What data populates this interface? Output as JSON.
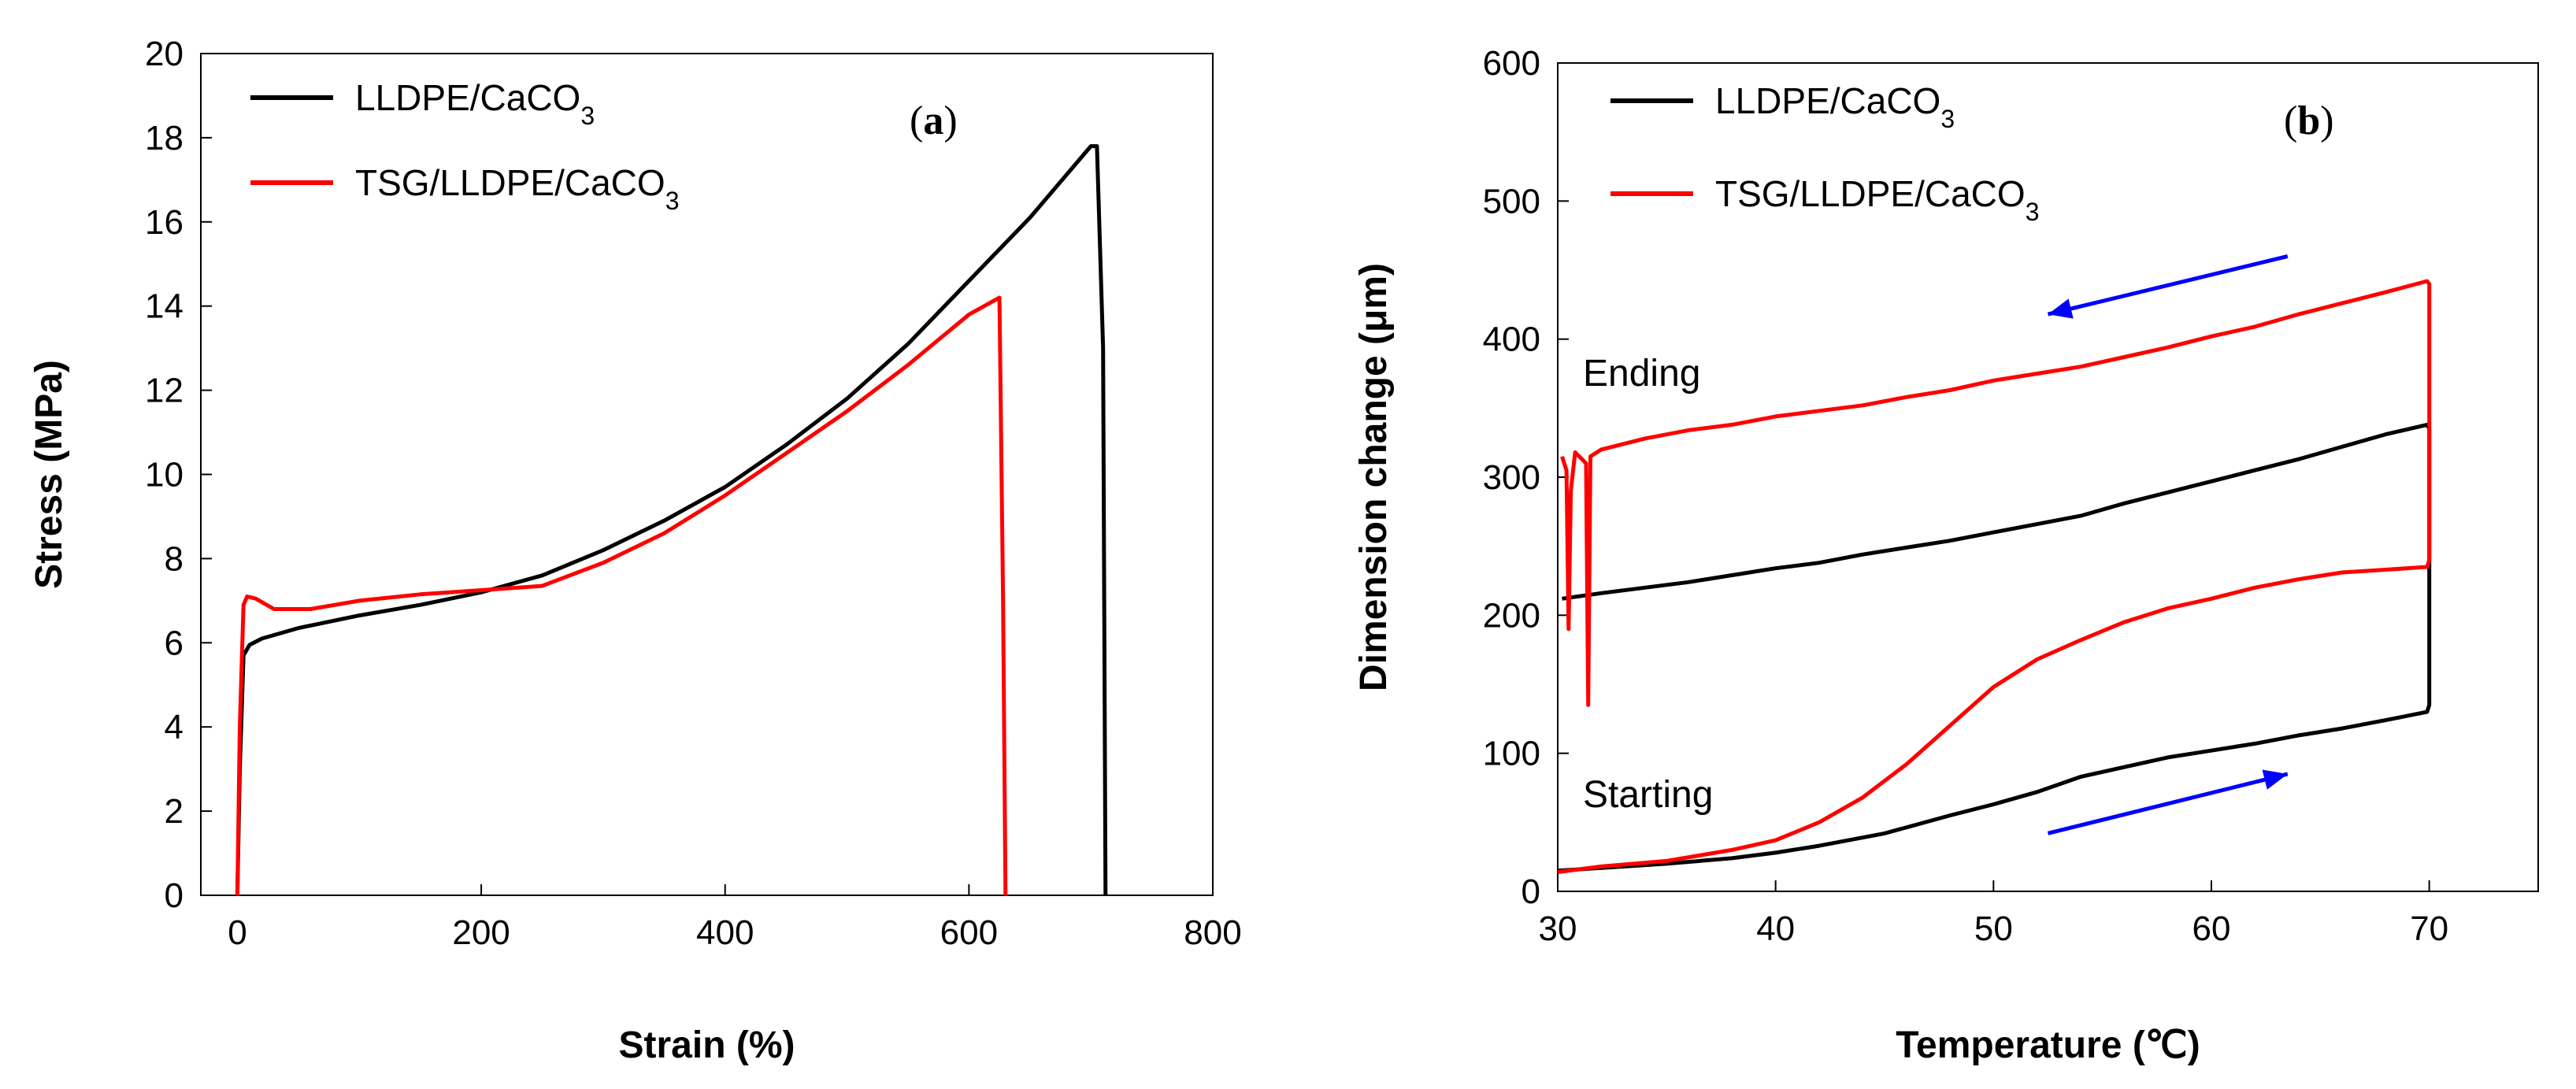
{
  "chart_data": [
    {
      "type": "line",
      "panel_label": "(a)",
      "title": "",
      "xlabel": "Strain (%)",
      "ylabel": "Stress (MPa)",
      "xlim": [
        -30,
        800
      ],
      "ylim": [
        0,
        20
      ],
      "xticks": [
        0,
        200,
        400,
        600,
        800
      ],
      "yticks": [
        0,
        2,
        4,
        6,
        8,
        10,
        12,
        14,
        16,
        18,
        20
      ],
      "legend_position": "top-left",
      "grid": false,
      "series": [
        {
          "name": "LLDPE/CaCO3",
          "color": "#000000",
          "x": [
            0,
            2,
            5,
            10,
            20,
            50,
            100,
            150,
            200,
            250,
            300,
            350,
            400,
            450,
            500,
            550,
            600,
            650,
            700,
            705,
            710,
            712
          ],
          "y": [
            0,
            3,
            5.7,
            5.95,
            6.1,
            6.35,
            6.65,
            6.9,
            7.2,
            7.6,
            8.2,
            8.9,
            9.7,
            10.7,
            11.8,
            13.1,
            14.6,
            16.1,
            17.8,
            17.8,
            13,
            0
          ]
        },
        {
          "name": "TSG/LLDPE/CaCO3",
          "color": "#ff0000",
          "x": [
            0,
            2,
            5,
            8,
            15,
            30,
            60,
            100,
            150,
            200,
            250,
            300,
            350,
            400,
            450,
            500,
            550,
            600,
            625,
            628,
            630
          ],
          "y": [
            0,
            4,
            6.9,
            7.1,
            7.05,
            6.8,
            6.8,
            7.0,
            7.15,
            7.25,
            7.35,
            7.9,
            8.6,
            9.5,
            10.5,
            11.5,
            12.6,
            13.8,
            14.2,
            7,
            0
          ]
        }
      ]
    },
    {
      "type": "line",
      "panel_label": "(b)",
      "title": "",
      "xlabel": "Temperature (℃)",
      "ylabel": "Dimension change (μm)",
      "xlim": [
        30,
        75
      ],
      "ylim": [
        0,
        600
      ],
      "xticks": [
        30,
        40,
        50,
        60,
        70
      ],
      "yticks": [
        0,
        100,
        200,
        300,
        400,
        500,
        600
      ],
      "legend_position": "top-left",
      "grid": false,
      "annotations": {
        "ending": "Ending",
        "starting": "Starting"
      },
      "arrows": [
        {
          "direction": "cooling",
          "from": [
            63.5,
            460
          ],
          "to": [
            52.5,
            418
          ],
          "color": "#0000ff"
        },
        {
          "direction": "heating",
          "from": [
            52.5,
            42
          ],
          "to": [
            63.5,
            85
          ],
          "color": "#0000ff"
        }
      ],
      "series": [
        {
          "name": "LLDPE/CaCO3",
          "color": "#000000",
          "x": [
            30,
            32,
            35,
            38,
            40,
            42,
            45,
            48,
            50,
            52,
            54,
            56,
            58,
            60,
            62,
            64,
            66,
            68,
            69.9,
            70,
            70,
            69.9,
            68,
            66,
            64,
            62,
            60,
            58,
            56,
            54,
            52,
            50,
            48,
            46,
            44,
            42,
            40,
            38,
            36,
            34,
            32,
            30.2
          ],
          "y": [
            15,
            17,
            20,
            24,
            28,
            33,
            42,
            55,
            63,
            72,
            83,
            90,
            97,
            102,
            107,
            113,
            118,
            124,
            130,
            135,
            335,
            338,
            331,
            322,
            313,
            305,
            297,
            289,
            281,
            272,
            266,
            260,
            254,
            249,
            244,
            238,
            234,
            229,
            224,
            220,
            216,
            212
          ]
        },
        {
          "name": "TSG/LLDPE/CaCO3",
          "color": "#ff0000",
          "x": [
            30,
            32,
            35,
            38,
            40,
            42,
            44,
            46,
            48,
            50,
            52,
            54,
            56,
            58,
            60,
            62,
            64,
            66,
            68,
            69.9,
            70,
            70,
            69.9,
            68,
            66,
            64,
            62,
            60,
            58,
            56,
            54,
            52,
            50,
            48,
            46,
            44,
            42,
            40,
            38,
            36,
            34,
            32,
            31.5,
            31.4,
            31.3,
            30.8,
            30.6,
            30.5,
            30.4,
            30.2
          ],
          "y": [
            14,
            18,
            22,
            30,
            37,
            50,
            68,
            92,
            120,
            148,
            168,
            182,
            195,
            205,
            212,
            220,
            226,
            231,
            233,
            235,
            240,
            440,
            442,
            434,
            426,
            418,
            409,
            402,
            394,
            387,
            380,
            375,
            370,
            363,
            358,
            352,
            348,
            344,
            338,
            334,
            328,
            320,
            315,
            135,
            310,
            318,
            290,
            190,
            305,
            315
          ]
        }
      ]
    }
  ]
}
